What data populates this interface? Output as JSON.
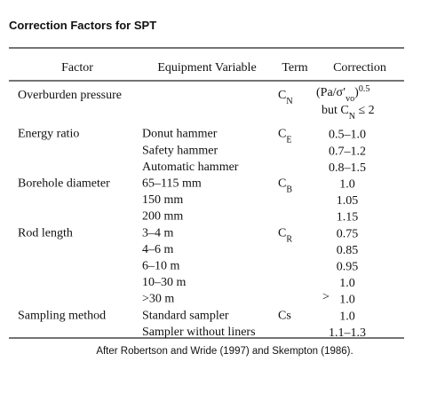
{
  "title": "Correction Factors for SPT",
  "table": {
    "headers": [
      "Factor",
      "Equipment Variable",
      "Term",
      "Correction"
    ],
    "groups": [
      {
        "factor": "Overburden pressure",
        "items": [
          {
            "term": [
              {
                "text": "C"
              },
              {
                "sub": "N"
              }
            ],
            "correction": [
              [
                {
                  "text": "(Pa/σ′"
                },
                {
                  "sub": "vo"
                },
                {
                  "text": ")"
                },
                {
                  "sup": "0.5"
                }
              ],
              [
                {
                  "text": "but C"
                },
                {
                  "sub": "N"
                },
                {
                  "text": " ≤ 2"
                }
              ]
            ]
          }
        ]
      },
      {
        "factor": "Energy ratio",
        "items": [
          {
            "variable": "Donut hammer",
            "term": [
              {
                "text": "C"
              },
              {
                "sub": "E"
              }
            ],
            "correction": "0.5–1.0"
          },
          {
            "variable": "Safety hammer",
            "correction": "0.7–1.2"
          },
          {
            "variable": "Automatic hammer",
            "correction": "0.8–1.5"
          }
        ]
      },
      {
        "factor": "Borehole diameter",
        "items": [
          {
            "variable": "65–115 mm",
            "term": [
              {
                "text": "C"
              },
              {
                "sub": "B"
              }
            ],
            "correction": "1.0"
          },
          {
            "variable": "150 mm",
            "correction": "1.05"
          },
          {
            "variable": "200 mm",
            "correction": "1.15"
          }
        ]
      },
      {
        "factor": "Rod length",
        "items": [
          {
            "variable": "3–4 m",
            "term": [
              {
                "text": "C"
              },
              {
                "sub": "R"
              }
            ],
            "correction": "0.75"
          },
          {
            "variable": "4–6 m",
            "correction": "0.85"
          },
          {
            "variable": "6–10 m",
            "correction": "0.95"
          },
          {
            "variable": "10–30 m",
            "correction": "1.0"
          },
          {
            "variable": ">30 m",
            "marker": ">",
            "correction": "1.0"
          }
        ]
      },
      {
        "factor": "Sampling method",
        "items": [
          {
            "variable": "Standard sampler",
            "term": [
              {
                "text": "Cs"
              }
            ],
            "correction": "1.0"
          },
          {
            "variable": "Sampler without liners",
            "correction": "1.1–1.3"
          }
        ]
      }
    ]
  },
  "caption": "After Robertson and Wride (1997) and Skempton (1986)."
}
